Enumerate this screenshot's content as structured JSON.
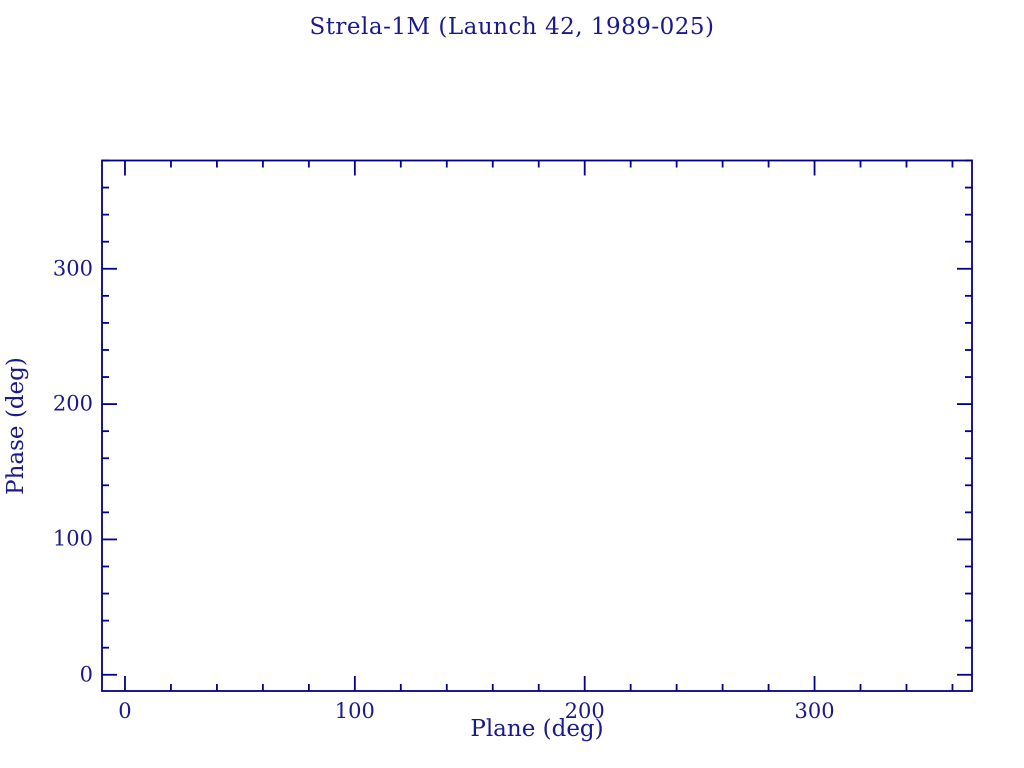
{
  "chart_data": {
    "type": "scatter",
    "title": "Strela-1M (Launch 42, 1989-025)",
    "xlabel": "Plane (deg)",
    "ylabel": "Phase (deg)",
    "xlim": [
      -10,
      368.5
    ],
    "ylim": [
      -12,
      380
    ],
    "x_major_ticks": [
      0,
      100,
      200,
      300
    ],
    "y_major_ticks": [
      0,
      100,
      200,
      300
    ],
    "x_tick_labels": [
      "0",
      "100",
      "200",
      "300"
    ],
    "y_tick_labels": [
      "0",
      "100",
      "200",
      "300"
    ],
    "minor_tick_interval": 20,
    "series": [],
    "grid": false,
    "legend": null,
    "axis_color": "#00008b",
    "text_color": "#19198c"
  }
}
